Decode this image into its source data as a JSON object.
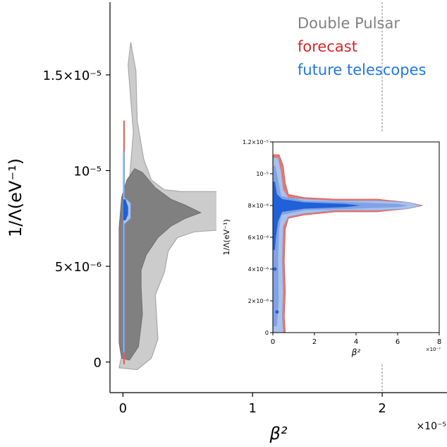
{
  "legend": {
    "placement": "top-right",
    "entries": [
      {
        "label": "Double Pulsar",
        "color": "#808080"
      },
      {
        "label": "forecast",
        "color": "#d62728"
      },
      {
        "label": "future telescopes",
        "color": "#1f77e4"
      }
    ]
  },
  "chart_data": [
    {
      "type": "contour",
      "role": "main",
      "xlabel": "β²",
      "ylabel": "1/Λ(eV⁻¹)",
      "x_exponent_label": "×10⁻⁵",
      "xlim": [
        -1e-06,
        2.5e-05
      ],
      "ylim": [
        -1.6e-06,
        1.88e-05
      ],
      "x_ticks": [
        {
          "value": 0,
          "label": "0"
        },
        {
          "value": 1e-05,
          "label": "1"
        },
        {
          "value": 2e-05,
          "label": "2"
        }
      ],
      "y_ticks": [
        {
          "value": 0,
          "label": "0"
        },
        {
          "value": 5e-06,
          "label": "5×10⁻⁶"
        },
        {
          "value": 1e-05,
          "label": "10⁻⁵"
        },
        {
          "value": 1.5e-05,
          "label": "1.5×10⁻⁵"
        }
      ],
      "marker_x": 2e-05,
      "series": [
        {
          "name": "Double Pulsar",
          "color_outer": "#cccccc",
          "color_inner": "#808080",
          "outer_contour": [
            [
              -3e-07,
              -3e-07
            ],
            [
              3e-07,
              1.5e-06
            ],
            [
              7e-07,
              5e-06
            ],
            [
              5e-07,
              9.5e-06
            ],
            [
              8e-07,
              1.2e-05
            ],
            [
              4e-07,
              1.55e-05
            ],
            [
              6e-07,
              1.67e-05
            ],
            [
              1e-06,
              1.52e-05
            ],
            [
              1.1e-06,
              1.26e-05
            ],
            [
              1.6e-06,
              1.06e-05
            ],
            [
              2.2e-06,
              9.5e-06
            ],
            [
              3.2e-06,
              9e-06
            ],
            [
              4.5e-06,
              8.9e-06
            ],
            [
              7.5e-06,
              8.9e-06
            ],
            [
              7.5e-06,
              6.9e-06
            ],
            [
              5.5e-06,
              6.8e-06
            ],
            [
              4.2e-06,
              6.5e-06
            ],
            [
              3.5e-06,
              5.8e-06
            ],
            [
              3.2e-06,
              4.7e-06
            ],
            [
              2.5e-06,
              3.5e-06
            ],
            [
              2.7e-06,
              1.2e-06
            ],
            [
              2.2e-06,
              2e-07
            ],
            [
              1.1e-06,
              -4e-07
            ]
          ],
          "inner_contour": [
            [
              -3e-07,
              1e-06
            ],
            [
              -3e-07,
              7e-06
            ],
            [
              -1e-07,
              8.6e-06
            ],
            [
              3e-07,
              9.5e-06
            ],
            [
              9e-07,
              1.01e-05
            ],
            [
              1.5e-06,
              9.9e-06
            ],
            [
              2.5e-06,
              9.1e-06
            ],
            [
              3.7e-06,
              8.5e-06
            ],
            [
              4.8e-06,
              8.2e-06
            ],
            [
              6e-06,
              7.8e-06
            ],
            [
              4.8e-06,
              7.5e-06
            ],
            [
              3.7e-06,
              7.1e-06
            ],
            [
              2.7e-06,
              6.5e-06
            ],
            [
              1.8e-06,
              5.6e-06
            ],
            [
              1.4e-06,
              4.8e-06
            ],
            [
              1.4e-06,
              4e-06
            ],
            [
              1.5e-06,
              2.5e-06
            ],
            [
              1.2e-06,
              8e-07
            ],
            [
              5e-07,
              1e-07
            ],
            [
              -1e-07,
              2e-07
            ]
          ]
        },
        {
          "name": "forecast",
          "color": "#e8766e",
          "contour": [
            [
              5e-08,
              -1e-07
            ],
            [
              5e-08,
              1.26e-05
            ],
            [
              1.2e-07,
              1.26e-05
            ],
            [
              1.2e-07,
              -1e-07
            ]
          ]
        },
        {
          "name": "future telescopes",
          "color_outer": "#a9c2ec",
          "color_inner": "#2060d8",
          "outer_contour": [
            [
              2e-08,
              5e-07
            ],
            [
              2e-08,
              1.1e-05
            ],
            [
              1.2e-07,
              1.1e-05
            ],
            [
              1.2e-07,
              8.6e-06
            ],
            [
              6e-07,
              8.3e-06
            ],
            [
              6e-07,
              7.5e-06
            ],
            [
              1.2e-07,
              7.2e-06
            ],
            [
              1.2e-07,
              5e-07
            ]
          ],
          "inner_contour": [
            [
              3e-08,
              7.4e-06
            ],
            [
              3e-08,
              8.5e-06
            ],
            [
              2e-07,
              8.5e-06
            ],
            [
              4e-07,
              8.1e-06
            ],
            [
              4e-07,
              7.7e-06
            ],
            [
              2e-07,
              7.4e-06
            ]
          ]
        }
      ]
    },
    {
      "type": "contour",
      "role": "inset",
      "xlabel": "β²",
      "ylabel": "1/Λ(eV⁻¹)",
      "x_exponent_label": "×10⁻⁷",
      "xlim": [
        0,
        8
      ],
      "ylim": [
        0,
        1.2e-05
      ],
      "x_ticks": [
        {
          "value": 0,
          "label": "0"
        },
        {
          "value": 2,
          "label": "2"
        },
        {
          "value": 4,
          "label": "4"
        },
        {
          "value": 6,
          "label": "6"
        },
        {
          "value": 8,
          "label": "8"
        }
      ],
      "y_ticks": [
        {
          "value": 0,
          "label": "0"
        },
        {
          "value": 2e-06,
          "label": "2×10⁻⁶"
        },
        {
          "value": 4e-06,
          "label": "4×10⁻⁶"
        },
        {
          "value": 6e-06,
          "label": "6×10⁻⁶"
        },
        {
          "value": 8e-06,
          "label": "8×10⁻⁶"
        },
        {
          "value": 1e-05,
          "label": "10⁻⁵"
        },
        {
          "value": 1.2e-05,
          "label": "1.2×10⁻⁵"
        }
      ],
      "series": [
        {
          "name": "forecast",
          "color": "#e8766e",
          "contour": [
            [
              0.02,
              0
            ],
            [
              0.02,
              1.12e-05
            ],
            [
              0.3,
              1.12e-05
            ],
            [
              0.5,
              1.05e-05
            ],
            [
              0.6,
              9.4e-06
            ],
            [
              0.75,
              8.7e-06
            ],
            [
              1.5,
              8.5e-06
            ],
            [
              3.0,
              8.4e-06
            ],
            [
              5.0,
              8.4e-06
            ],
            [
              6.5,
              8.2e-06
            ],
            [
              7.2,
              8e-06
            ],
            [
              6.5,
              7.8e-06
            ],
            [
              5.0,
              7.6e-06
            ],
            [
              3.0,
              7.6e-06
            ],
            [
              1.5,
              7.4e-06
            ],
            [
              0.75,
              7.2e-06
            ],
            [
              0.6,
              6.5e-06
            ],
            [
              0.55,
              4.5e-06
            ],
            [
              0.6,
              2.5e-06
            ],
            [
              0.55,
              1e-06
            ],
            [
              0.6,
              0
            ]
          ]
        },
        {
          "name": "future telescopes",
          "color_outer": "#a9c2ec",
          "color_mid": "#7fa3e6",
          "color_inner": "#2060d8",
          "outer_contour": [
            [
              0.02,
              0
            ],
            [
              0.02,
              1.1e-05
            ],
            [
              0.25,
              1.1e-05
            ],
            [
              0.4,
              1.01e-05
            ],
            [
              0.5,
              9e-06
            ],
            [
              0.75,
              8.5e-06
            ],
            [
              1.5,
              8.4e-06
            ],
            [
              3.0,
              8.3e-06
            ],
            [
              5.0,
              8.3e-06
            ],
            [
              6.5,
              8.2e-06
            ],
            [
              7.1,
              8e-06
            ],
            [
              6.5,
              7.8e-06
            ],
            [
              5.0,
              7.7e-06
            ],
            [
              3.0,
              7.7e-06
            ],
            [
              1.5,
              7.5e-06
            ],
            [
              0.75,
              7.3e-06
            ],
            [
              0.5,
              6.7e-06
            ],
            [
              0.45,
              4.5e-06
            ],
            [
              0.5,
              2.5e-06
            ],
            [
              0.45,
              1e-06
            ],
            [
              0.5,
              0
            ]
          ],
          "mid_contour": [
            [
              0.02,
              4e-07
            ],
            [
              0.02,
              1.05e-05
            ],
            [
              0.12,
              1.05e-05
            ],
            [
              0.25,
              9.6e-06
            ],
            [
              0.4,
              8.6e-06
            ],
            [
              1.5,
              8.3e-06
            ],
            [
              4.0,
              8.2e-06
            ],
            [
              6.0,
              8.1e-06
            ],
            [
              6.5,
              8e-06
            ],
            [
              6.0,
              7.9e-06
            ],
            [
              4.0,
              7.8e-06
            ],
            [
              1.5,
              7.7e-06
            ],
            [
              0.4,
              7.4e-06
            ],
            [
              0.3,
              6.5e-06
            ],
            [
              0.25,
              4.5e-06
            ],
            [
              0.28,
              2e-06
            ],
            [
              0.2,
              4e-07
            ]
          ],
          "inner_contour": [
            [
              0.02,
              5.2e-06
            ],
            [
              0.02,
              9.5e-06
            ],
            [
              0.1,
              9.5e-06
            ],
            [
              0.2,
              8.7e-06
            ],
            [
              0.45,
              8.4e-06
            ],
            [
              1.5,
              8.2e-06
            ],
            [
              3.5,
              8.1e-06
            ],
            [
              4.2,
              8e-06
            ],
            [
              3.5,
              7.9e-06
            ],
            [
              1.5,
              7.8e-06
            ],
            [
              0.45,
              7.6e-06
            ],
            [
              0.25,
              7e-06
            ],
            [
              0.15,
              6e-06
            ],
            [
              0.1,
              5.2e-06
            ]
          ],
          "dots": [
            [
              0.1,
              4e-06
            ],
            [
              0.2,
              1.3e-06
            ]
          ]
        }
      ]
    }
  ]
}
